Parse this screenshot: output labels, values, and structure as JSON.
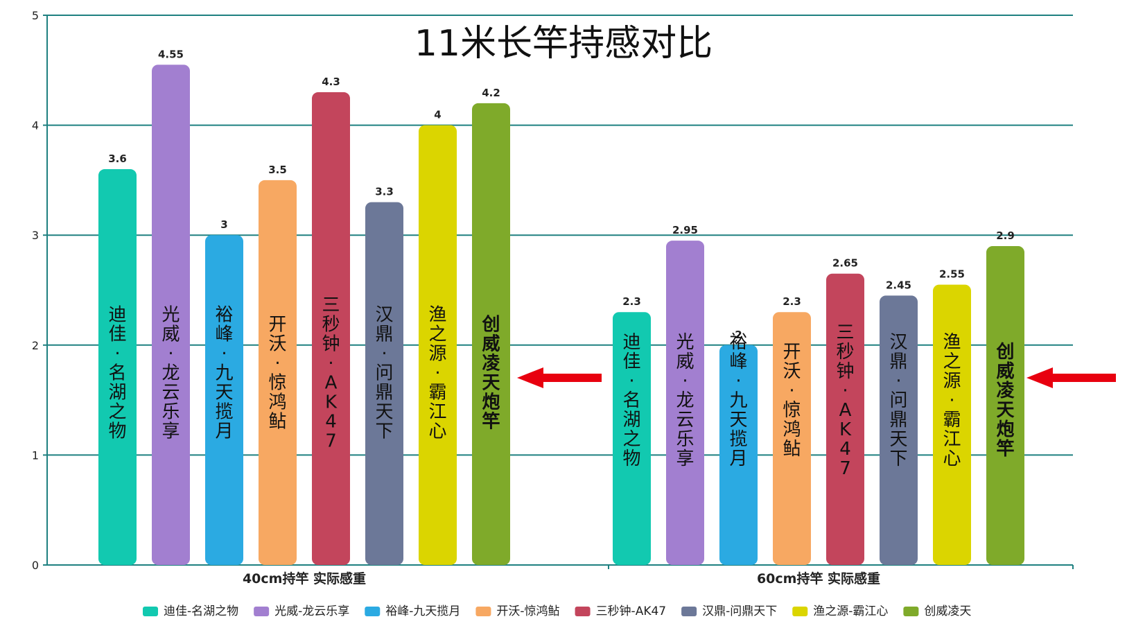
{
  "chart_data": {
    "type": "bar",
    "title": "11米长竿持感对比",
    "categories": [
      "40cm持竿 实际感重",
      "60cm持竿 实际感重"
    ],
    "ylim": [
      0,
      5
    ],
    "yticks": [
      "0",
      "1",
      "2",
      "3",
      "4",
      "5"
    ],
    "grid": true,
    "legend_position": "bottom",
    "series": [
      {
        "name": "迪佳-名湖之物",
        "bar_label": "迪佳·名湖之物",
        "values": [
          3.6,
          2.3
        ],
        "color": "#12C9B0"
      },
      {
        "name": "光威-龙云乐享",
        "bar_label": "光威·龙云乐享",
        "values": [
          4.55,
          2.95
        ],
        "color": "#A27FD0"
      },
      {
        "name": "裕峰-九天揽月",
        "bar_label": "裕峰·九天揽月",
        "values": [
          3,
          2
        ],
        "color": "#2BAAE2"
      },
      {
        "name": "开沃-惊鸿鲇",
        "bar_label": "开沃·惊鸿鲇",
        "values": [
          3.5,
          2.3
        ],
        "color": "#F7A862"
      },
      {
        "name": "三秒钟-AK47",
        "bar_label": "三秒钟·AK47",
        "values": [
          4.3,
          2.65
        ],
        "color": "#C3455C"
      },
      {
        "name": "汉鼎-问鼎天下",
        "bar_label": "汉鼎·问鼎天下",
        "values": [
          3.3,
          2.45
        ],
        "color": "#6C7898"
      },
      {
        "name": "渔之源-霸江心",
        "bar_label": "渔之源·霸江心",
        "values": [
          4,
          2.55
        ],
        "color": "#DBD500"
      },
      {
        "name": "创威凌天",
        "bar_label": "创威凌天炮竿",
        "values": [
          4.2,
          2.9
        ],
        "color": "#7FAA2A",
        "highlight": true
      }
    ],
    "data_labels": [
      [
        "3.6",
        "2.3"
      ],
      [
        "4.55",
        "2.95"
      ],
      [
        "3",
        "2"
      ],
      [
        "3.5",
        "2.3"
      ],
      [
        "4.3",
        "2.65"
      ],
      [
        "3.3",
        "2.45"
      ],
      [
        "4",
        "2.55"
      ],
      [
        "4.2",
        "2.9"
      ]
    ],
    "annotations": [
      {
        "type": "arrow",
        "color": "#E8000F",
        "points_to": "创威凌天炮竿",
        "group": 0
      },
      {
        "type": "arrow",
        "color": "#E8000F",
        "points_to": "创威凌天炮竿",
        "group": 1
      }
    ]
  }
}
